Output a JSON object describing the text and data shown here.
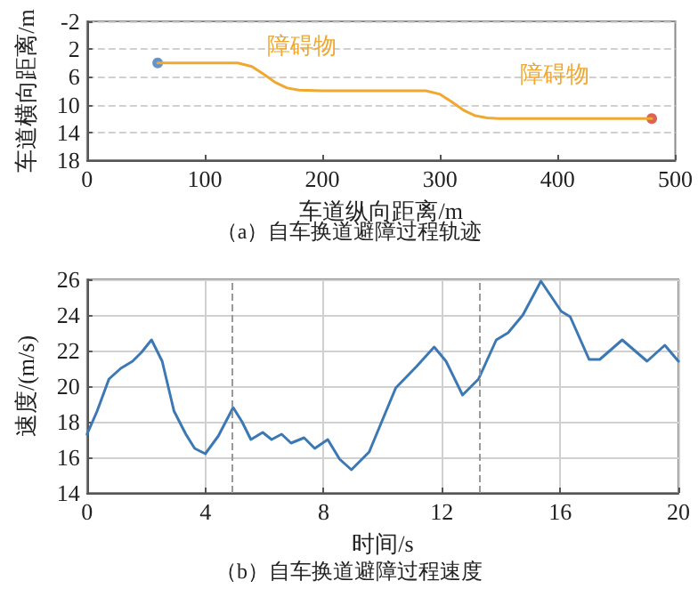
{
  "chart_data": [
    {
      "type": "line",
      "title": "（a）自车换道避障过程轨迹",
      "xlabel": "车道纵向距离/m",
      "ylabel": "车道横向距离/m",
      "xlim": [
        0,
        500
      ],
      "xticks": [
        0,
        100,
        200,
        300,
        400,
        500
      ],
      "ylim": [
        18,
        -2
      ],
      "yticks": [
        -2,
        2,
        6,
        10,
        14,
        18
      ],
      "grid": "y",
      "marker": "none",
      "annotations": [
        "障碍物",
        "障碍物"
      ],
      "series": [
        {
          "color": "#f0a830",
          "x": [
            60,
            128,
            140,
            150,
            160,
            170,
            180,
            200,
            250,
            288,
            300,
            310,
            320,
            330,
            340,
            350,
            400,
            480
          ],
          "values": [
            4,
            4,
            4.5,
            5.6,
            6.8,
            7.6,
            7.9,
            8,
            8,
            8,
            8.5,
            9.6,
            10.8,
            11.6,
            11.9,
            12,
            12,
            12
          ]
        },
        {
          "type": "scatter",
          "marker": "circle",
          "color": "#3a78c0",
          "x": [
            60
          ],
          "values": [
            4
          ]
        },
        {
          "type": "scatter",
          "marker": "circle",
          "color": "#d83a2a",
          "x": [
            480
          ],
          "values": [
            12
          ]
        }
      ]
    },
    {
      "type": "line",
      "title": "（b）自车换道避障过程速度",
      "xlabel": "时间/s",
      "ylabel": "速度/(m/s)",
      "xlim": [
        0,
        20
      ],
      "xticks": [
        0,
        4,
        8,
        12,
        16,
        20
      ],
      "ylim": [
        14,
        26
      ],
      "yticks": [
        14,
        16,
        18,
        20,
        22,
        24,
        26
      ],
      "grid": true,
      "marker": "none",
      "ref_lines": [
        {
          "axis": "x",
          "value": 4.9,
          "color": "#999999",
          "line_style": "dashed"
        },
        {
          "axis": "x",
          "value": 13.3,
          "color": "#999999",
          "line_style": "dashed"
        }
      ],
      "series": [
        {
          "color": "#3c78b4",
          "x": [
            0,
            0.34,
            0.74,
            1.14,
            1.54,
            1.84,
            2.18,
            2.54,
            2.94,
            3.34,
            3.64,
            4.0,
            4.44,
            4.94,
            5.24,
            5.54,
            5.94,
            6.24,
            6.58,
            6.9,
            7.34,
            7.7,
            8.14,
            8.54,
            8.94,
            9.54,
            10.44,
            11.14,
            11.74,
            12.14,
            12.7,
            13.24,
            13.84,
            14.24,
            14.74,
            15.35,
            16.04,
            16.34,
            16.98,
            17.34,
            18.1,
            18.94,
            19.54,
            20
          ],
          "values": [
            17.3,
            18.6,
            20.4,
            21.0,
            21.4,
            21.9,
            22.6,
            21.4,
            18.6,
            17.3,
            16.5,
            16.2,
            17.2,
            18.8,
            18.0,
            17.0,
            17.4,
            17.0,
            17.3,
            16.8,
            17.1,
            16.5,
            17.0,
            15.9,
            15.3,
            16.3,
            19.9,
            21.1,
            22.2,
            21.4,
            19.5,
            20.4,
            22.6,
            23.0,
            24.0,
            25.9,
            24.2,
            23.9,
            21.5,
            21.5,
            22.6,
            21.4,
            22.3,
            21.4
          ]
        }
      ]
    }
  ]
}
